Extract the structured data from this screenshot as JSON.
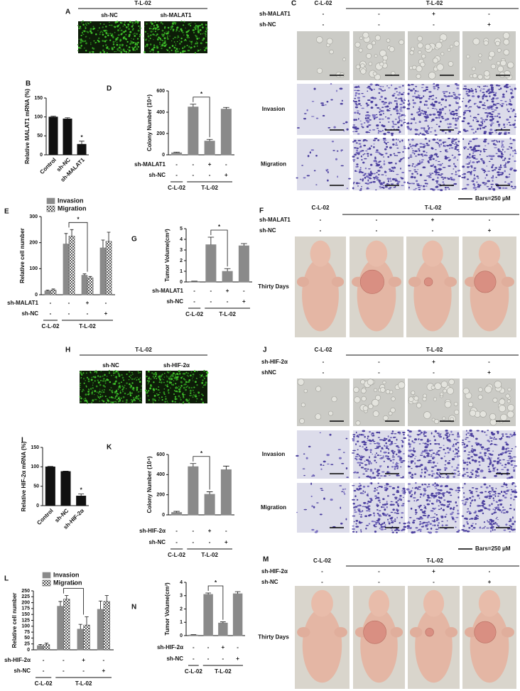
{
  "chart_data": [
    {
      "panel": "B",
      "type": "bar",
      "ylabel": "Relative MALAT1 mRNA (%)",
      "categories": [
        "Control",
        "sh-NC",
        "sh-MALAT1"
      ],
      "values": [
        100,
        95,
        28
      ],
      "errors": [
        2,
        3,
        8
      ],
      "color": "#111111",
      "ylim": [
        0,
        150
      ],
      "yticks": [
        0,
        50,
        100,
        150
      ],
      "significance": {
        "label": "*",
        "bars": [
          2
        ]
      }
    },
    {
      "panel": "D",
      "type": "bar",
      "ylabel": "Colony Number (10⁴)",
      "values": [
        20,
        450,
        130,
        430
      ],
      "errors": [
        5,
        25,
        15,
        15
      ],
      "color": "#8a8a8a",
      "ylim": [
        0,
        600
      ],
      "yticks": [
        0,
        200,
        400,
        600
      ],
      "significance": {
        "label": "*",
        "bars": [
          1,
          2
        ]
      },
      "conditions": [
        {
          "name": "sh-MALAT1",
          "values": [
            "-",
            "-",
            "+",
            "-"
          ]
        },
        {
          "name": "sh-NC",
          "values": [
            "-",
            "-",
            "-",
            "+"
          ]
        }
      ],
      "groups": [
        {
          "label": "C-L-02",
          "count": 1
        },
        {
          "label": "T-L-02",
          "count": 3
        }
      ]
    },
    {
      "panel": "E",
      "type": "bar",
      "ylabel": "Relative cell number",
      "ylim": [
        0,
        300
      ],
      "yticks": [
        0,
        100,
        200,
        300
      ],
      "legend": "top-left",
      "series": [
        {
          "name": "Invasion",
          "color": "#8a8a8a",
          "values": [
            15,
            195,
            75,
            180
          ],
          "errors": [
            3,
            40,
            5,
            30
          ]
        },
        {
          "name": "Migration",
          "color": "#555555",
          "pattern": "checker",
          "values": [
            18,
            225,
            65,
            205
          ],
          "errors": [
            4,
            25,
            5,
            35
          ]
        }
      ],
      "significance": {
        "label": "*",
        "bars": [
          1,
          2
        ]
      },
      "conditions": [
        {
          "name": "sh-MALAT1",
          "values": [
            "-",
            "-",
            "+",
            "-"
          ]
        },
        {
          "name": "sh-NC",
          "values": [
            "-",
            "-",
            "-",
            "+"
          ]
        }
      ],
      "groups": [
        {
          "label": "C-L-02",
          "count": 1
        },
        {
          "label": "T-L-02",
          "count": 3
        }
      ]
    },
    {
      "panel": "G",
      "type": "bar",
      "ylabel": "Tumor Volume(cm³)",
      "values": [
        0.05,
        3.5,
        1.0,
        3.4
      ],
      "errors": [
        0.02,
        0.7,
        0.25,
        0.2
      ],
      "color": "#8a8a8a",
      "ylim": [
        0,
        5
      ],
      "yticks": [
        0,
        1,
        2,
        3,
        4,
        5
      ],
      "significance": {
        "label": "*",
        "bars": [
          1,
          2
        ]
      },
      "conditions": [
        {
          "name": "sh-MALAT1",
          "values": [
            "-",
            "-",
            "+",
            "-"
          ]
        },
        {
          "name": "sh-NC",
          "values": [
            "-",
            "-",
            "-",
            "+"
          ]
        }
      ],
      "groups": [
        {
          "label": "C-L-02",
          "count": 1
        },
        {
          "label": "T-L-02",
          "count": 3
        }
      ]
    },
    {
      "panel": "I",
      "type": "bar",
      "ylabel": "Relative HIF-2α mRNA (%)",
      "categories": [
        "Control",
        "sh-NC",
        "sh-HIF-2α"
      ],
      "values": [
        100,
        88,
        25
      ],
      "errors": [
        1,
        1,
        5
      ],
      "color": "#111111",
      "ylim": [
        0,
        150
      ],
      "yticks": [
        0,
        50,
        100,
        150
      ],
      "significance": {
        "label": "*",
        "bars": [
          2
        ]
      }
    },
    {
      "panel": "K",
      "type": "bar",
      "ylabel": "Colony Number (10⁴)",
      "values": [
        25,
        480,
        205,
        450
      ],
      "errors": [
        10,
        30,
        25,
        35
      ],
      "color": "#8a8a8a",
      "ylim": [
        0,
        600
      ],
      "yticks": [
        0,
        200,
        400,
        600
      ],
      "significance": {
        "label": "*",
        "bars": [
          1,
          2
        ]
      },
      "conditions": [
        {
          "name": "sh-HIF-2α",
          "values": [
            "-",
            "-",
            "+",
            "-"
          ]
        },
        {
          "name": "sh-NC",
          "values": [
            "-",
            "-",
            "-",
            "+"
          ]
        }
      ],
      "groups": [
        {
          "label": "C-L-02",
          "count": 1
        },
        {
          "label": "T-L-02",
          "count": 3
        }
      ]
    },
    {
      "panel": "L",
      "type": "bar",
      "ylabel": "Relative cell number",
      "ylim": [
        0,
        250
      ],
      "yticks": [
        0,
        25,
        50,
        75,
        100,
        125,
        150,
        175,
        200,
        225,
        250
      ],
      "legend": "top-left",
      "series": [
        {
          "name": "Invasion",
          "color": "#8a8a8a",
          "values": [
            18,
            185,
            88,
            172
          ],
          "errors": [
            5,
            20,
            20,
            35
          ]
        },
        {
          "name": "Migration",
          "color": "#555555",
          "pattern": "checker",
          "values": [
            22,
            215,
            105,
            205
          ],
          "errors": [
            6,
            15,
            35,
            25
          ]
        }
      ],
      "significance": {
        "label": "*",
        "bars": [
          1,
          2
        ]
      },
      "conditions": [
        {
          "name": "sh-HIF-2α",
          "values": [
            "-",
            "-",
            "+",
            "-"
          ]
        },
        {
          "name": "sh-NC",
          "values": [
            "-",
            "-",
            "-",
            "+"
          ]
        }
      ],
      "groups": [
        {
          "label": "C-L-02",
          "count": 1
        },
        {
          "label": "T-L-02",
          "count": 3
        }
      ]
    },
    {
      "panel": "N",
      "type": "bar",
      "ylabel": "Tumor Volume(cm³)",
      "values": [
        0.05,
        3.1,
        0.95,
        3.15
      ],
      "errors": [
        0.02,
        0.1,
        0.08,
        0.15
      ],
      "color": "#8a8a8a",
      "ylim": [
        0,
        4
      ],
      "yticks": [
        0,
        1,
        2,
        3,
        4
      ],
      "significance": {
        "label": "*",
        "bars": [
          1,
          2
        ]
      },
      "conditions": [
        {
          "name": "sh-HIF-2α",
          "values": [
            "-",
            "-",
            "+",
            "-"
          ]
        },
        {
          "name": "sh-NC",
          "values": [
            "-",
            "-",
            "-",
            "+"
          ]
        }
      ],
      "groups": [
        {
          "label": "C-L-02",
          "count": 1
        },
        {
          "label": "T-L-02",
          "count": 3
        }
      ]
    }
  ],
  "figure": {
    "images": [
      {
        "panel": "A",
        "header": "T-L-02",
        "columns": [
          "sh-NC",
          "sh-MALAT1"
        ],
        "row_styles": [
          "fluorescence"
        ]
      },
      {
        "panel": "C",
        "groups": [
          {
            "label": "C-L-02",
            "count": 1
          },
          {
            "label": "T-L-02",
            "count": 3
          }
        ],
        "conditions": [
          {
            "name": "sh-MALAT1",
            "values": [
              "-",
              "-",
              "+",
              "-"
            ]
          },
          {
            "name": "sh-NC",
            "values": [
              "-",
              "-",
              "-",
              "+"
            ]
          }
        ],
        "rows": [
          null,
          "Invasion",
          "Migration"
        ],
        "row_styles": [
          "cells",
          "stained",
          "stained"
        ],
        "scale_note": "Bars=250 μM"
      },
      {
        "panel": "F",
        "groups": [
          {
            "label": "C-L-02",
            "count": 1
          },
          {
            "label": "T-L-02",
            "count": 3
          }
        ],
        "conditions": [
          {
            "name": "sh-MALAT1",
            "values": [
              "-",
              "-",
              "+",
              "-"
            ]
          },
          {
            "name": "sh-NC",
            "values": [
              "-",
              "-",
              "-",
              "+"
            ]
          }
        ],
        "rows": [
          "Thirty Days"
        ],
        "row_styles": [
          "mouse"
        ]
      },
      {
        "panel": "H",
        "header": "T-L-02",
        "columns": [
          "sh-NC",
          "sh-HIF-2α"
        ],
        "row_styles": [
          "fluorescence"
        ]
      },
      {
        "panel": "J",
        "groups": [
          {
            "label": "C-L-02",
            "count": 1
          },
          {
            "label": "T-L-02",
            "count": 3
          }
        ],
        "conditions": [
          {
            "name": "sh-HIF-2α",
            "values": [
              "-",
              "-",
              "+",
              "-"
            ]
          },
          {
            "name": "shNC",
            "values": [
              "-",
              "-",
              "-",
              "+"
            ]
          }
        ],
        "rows": [
          null,
          "Invasion",
          "Migration"
        ],
        "row_styles": [
          "cells",
          "stained",
          "stained"
        ],
        "scale_note": "Bars=250 μM"
      },
      {
        "panel": "M",
        "groups": [
          {
            "label": "C-L-02",
            "count": 1
          },
          {
            "label": "T-L-02",
            "count": 3
          }
        ],
        "conditions": [
          {
            "name": "sh-HIF-2α",
            "values": [
              "-",
              "-",
              "+",
              "-"
            ]
          },
          {
            "name": "sh-NC",
            "values": [
              "-",
              "-",
              "-",
              "+"
            ]
          }
        ],
        "rows": [
          "Thirty Days"
        ],
        "row_styles": [
          "mouse"
        ]
      }
    ]
  }
}
